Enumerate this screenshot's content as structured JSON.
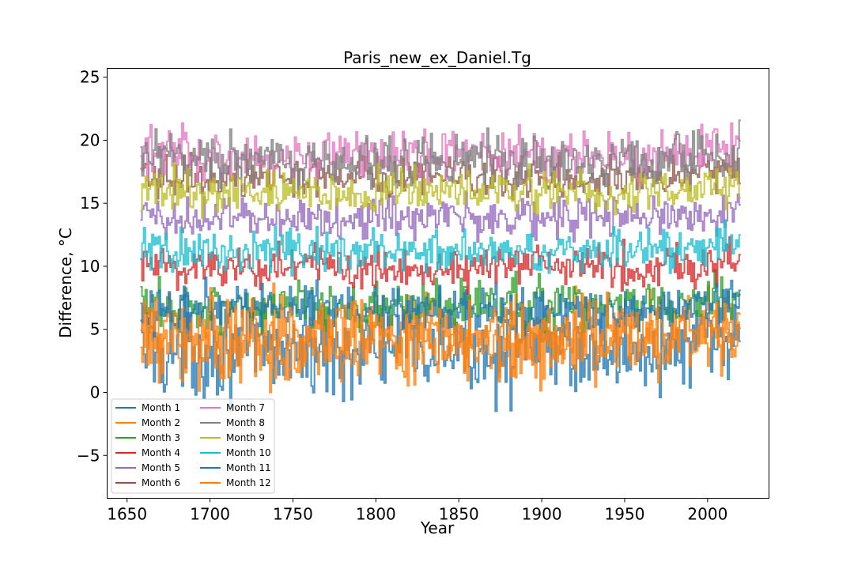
{
  "chart_data": {
    "type": "line",
    "title": "Paris_new_ex_Daniel.Tg",
    "xlabel": "Year",
    "ylabel": "Difference, °C",
    "xlim": [
      1638,
      2037
    ],
    "ylim": [
      -8.4,
      25.7
    ],
    "xticks": [
      1650,
      1700,
      1750,
      1800,
      1850,
      1900,
      1950,
      2000
    ],
    "yticks": [
      -5,
      0,
      5,
      10,
      15,
      20,
      25
    ],
    "ytick_labels": [
      "−5",
      "0",
      "5",
      "10",
      "15",
      "20",
      "25"
    ],
    "x_range": [
      1658,
      2019
    ],
    "step": "steps-post",
    "grid": false,
    "legend_position": "lower-left",
    "legend_columns": 2,
    "series": [
      {
        "name": "Month 1",
        "color": "#1f77b4",
        "mean": 3.4,
        "amplitude": 2.6
      },
      {
        "name": "Month 2",
        "color": "#ff7f0e",
        "mean": 4.3,
        "amplitude": 2.3
      },
      {
        "name": "Month 3",
        "color": "#2ca02c",
        "mean": 6.9,
        "amplitude": 1.4
      },
      {
        "name": "Month 4",
        "color": "#d62728",
        "mean": 10.0,
        "amplitude": 1.3
      },
      {
        "name": "Month 5",
        "color": "#9467bd",
        "mean": 13.9,
        "amplitude": 1.2
      },
      {
        "name": "Month 6",
        "color": "#8c564b",
        "mean": 17.1,
        "amplitude": 1.1
      },
      {
        "name": "Month 7",
        "color": "#e377c2",
        "mean": 18.8,
        "amplitude": 1.4
      },
      {
        "name": "Month 8",
        "color": "#7f7f7f",
        "mean": 18.4,
        "amplitude": 1.4
      },
      {
        "name": "Month 9",
        "color": "#bcbd22",
        "mean": 15.9,
        "amplitude": 1.2
      },
      {
        "name": "Month 10",
        "color": "#17becf",
        "mean": 11.2,
        "amplitude": 1.2
      },
      {
        "name": "Month 11",
        "color": "#1f77b4",
        "mean": 6.7,
        "amplitude": 1.3
      },
      {
        "name": "Month 12",
        "color": "#ff7f0e",
        "mean": 4.3,
        "amplitude": 2.2
      }
    ]
  }
}
